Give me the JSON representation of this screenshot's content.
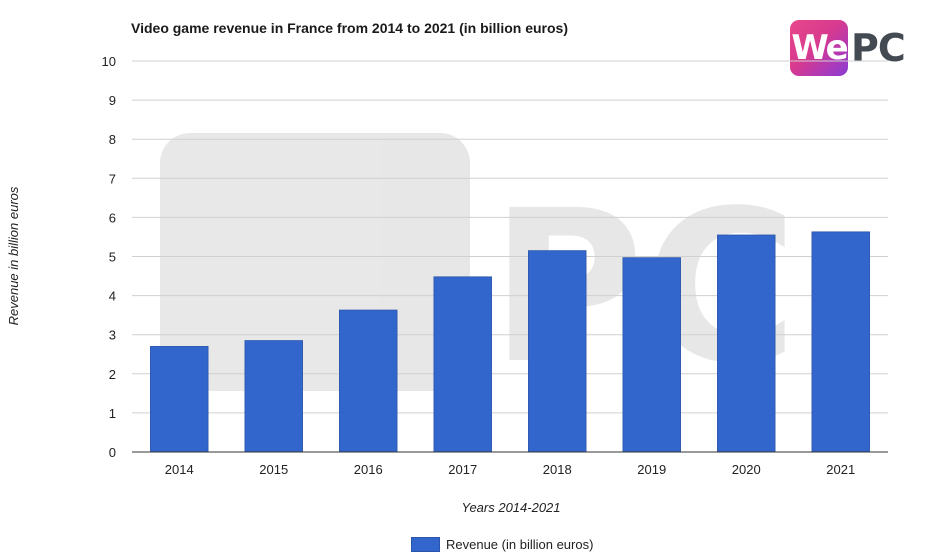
{
  "chart_data": {
    "type": "bar",
    "title": "Video game revenue in France from 2014 to 2021 (in billion euros)",
    "xlabel": "Years 2014-2021",
    "ylabel": "Revenue in billion euros",
    "categories": [
      "2014",
      "2015",
      "2016",
      "2017",
      "2018",
      "2019",
      "2020",
      "2021"
    ],
    "series": [
      {
        "name": "Revenue (in billion euros)",
        "values": [
          2.7,
          2.85,
          3.63,
          4.48,
          5.15,
          4.97,
          5.55,
          5.63
        ],
        "color": "#3366cc"
      }
    ],
    "ylim": [
      0,
      10
    ],
    "yticks": [
      "0",
      "1",
      "2",
      "3",
      "4",
      "5",
      "6",
      "7",
      "8",
      "9",
      "10"
    ],
    "grid": true,
    "legend_position": "bottom"
  },
  "logo": {
    "part1": "We",
    "part2": "PC"
  }
}
